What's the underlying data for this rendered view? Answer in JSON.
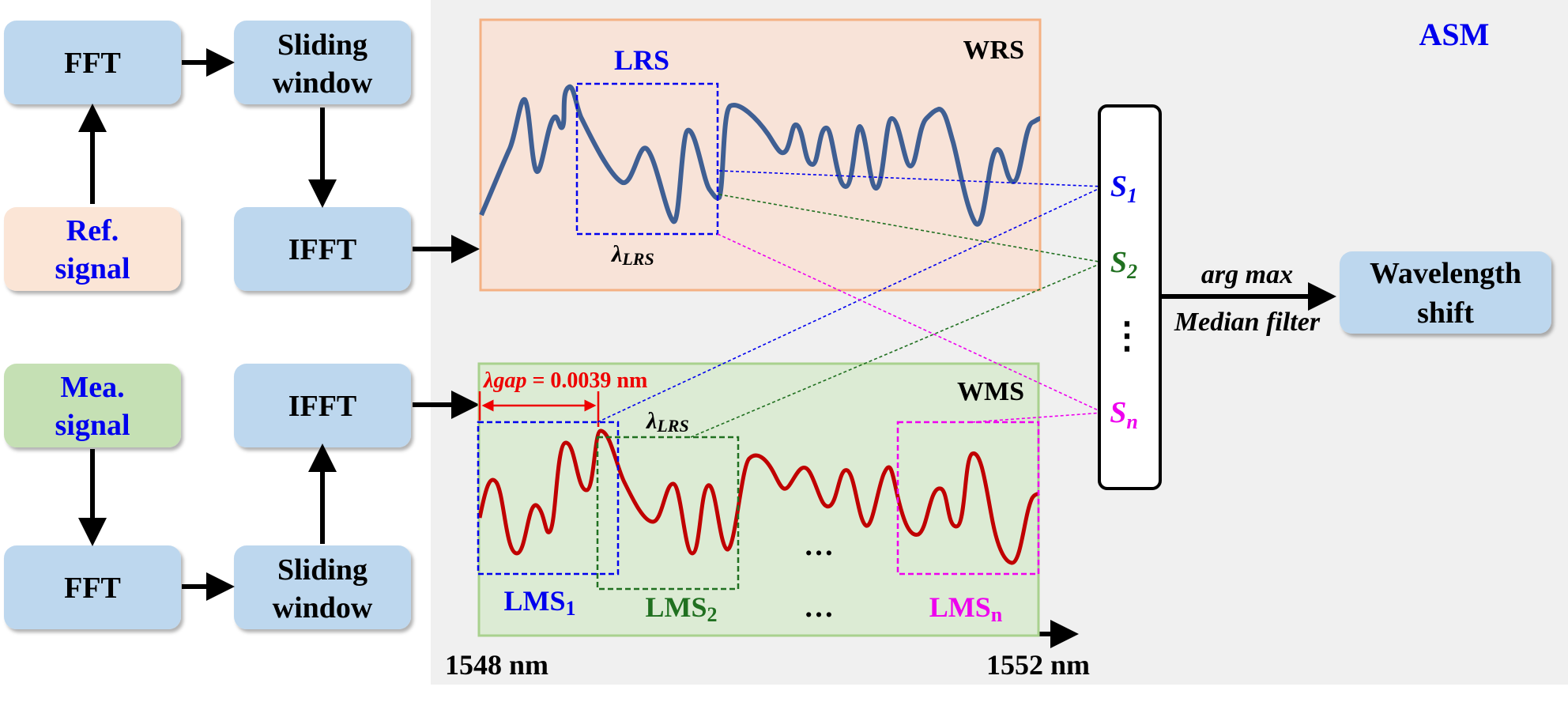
{
  "boxes": {
    "fft_top": "FFT",
    "sliding_top_1": "Sliding",
    "sliding_top_2": "window",
    "ref_1": "Ref.",
    "ref_2": "signal",
    "ifft_top": "IFFT",
    "mea_1": "Mea.",
    "mea_2": "signal",
    "ifft_bottom": "IFFT",
    "fft_bottom": "FFT",
    "sliding_bottom_1": "Sliding",
    "sliding_bottom_2": "window",
    "wavelength_1": "Wavelength",
    "wavelength_2": "shift"
  },
  "asm": {
    "label": "ASM"
  },
  "wrs": {
    "label": "WRS",
    "lrs_label": "LRS",
    "lambda": "λ",
    "lambda_sub": "LRS"
  },
  "wms": {
    "label": "WMS",
    "gap_lambda": "λ",
    "gap_var": "gap",
    "gap_value": " = 0.0039 nm",
    "lambda": "λ",
    "lambda_sub": "LRS",
    "lms1": "LMS",
    "lms1_sub": "1",
    "lms2": "LMS",
    "lms2_sub": "2",
    "lmsn": "LMS",
    "lmsn_sub": "n",
    "dots": "…"
  },
  "scores": {
    "s1": "S",
    "s1_sub": "1",
    "s2": "S",
    "s2_sub": "2",
    "dots": "⋮",
    "sn": "S",
    "sn_sub": "n"
  },
  "output": {
    "argmax": "arg max",
    "median": "Median filter"
  },
  "axis": {
    "start": "1548 nm",
    "end": "1552 nm"
  },
  "colors": {
    "box_blue": "#bdd7ee",
    "ref_box": "#fbe5d6",
    "mea_box": "#c5e0b4",
    "wrs_panel": "#f8e3d8",
    "wrs_border": "#f4b183",
    "wms_panel": "#dcebd4",
    "wms_border": "#a9d18e",
    "asm_bg": "#f0f0f0",
    "reference_curve": "#3f5f93",
    "measured_curve": "#c00000",
    "s1": "#0000ee",
    "s2": "#207020",
    "sn": "#ee00ee",
    "gap": "#ee0000"
  }
}
